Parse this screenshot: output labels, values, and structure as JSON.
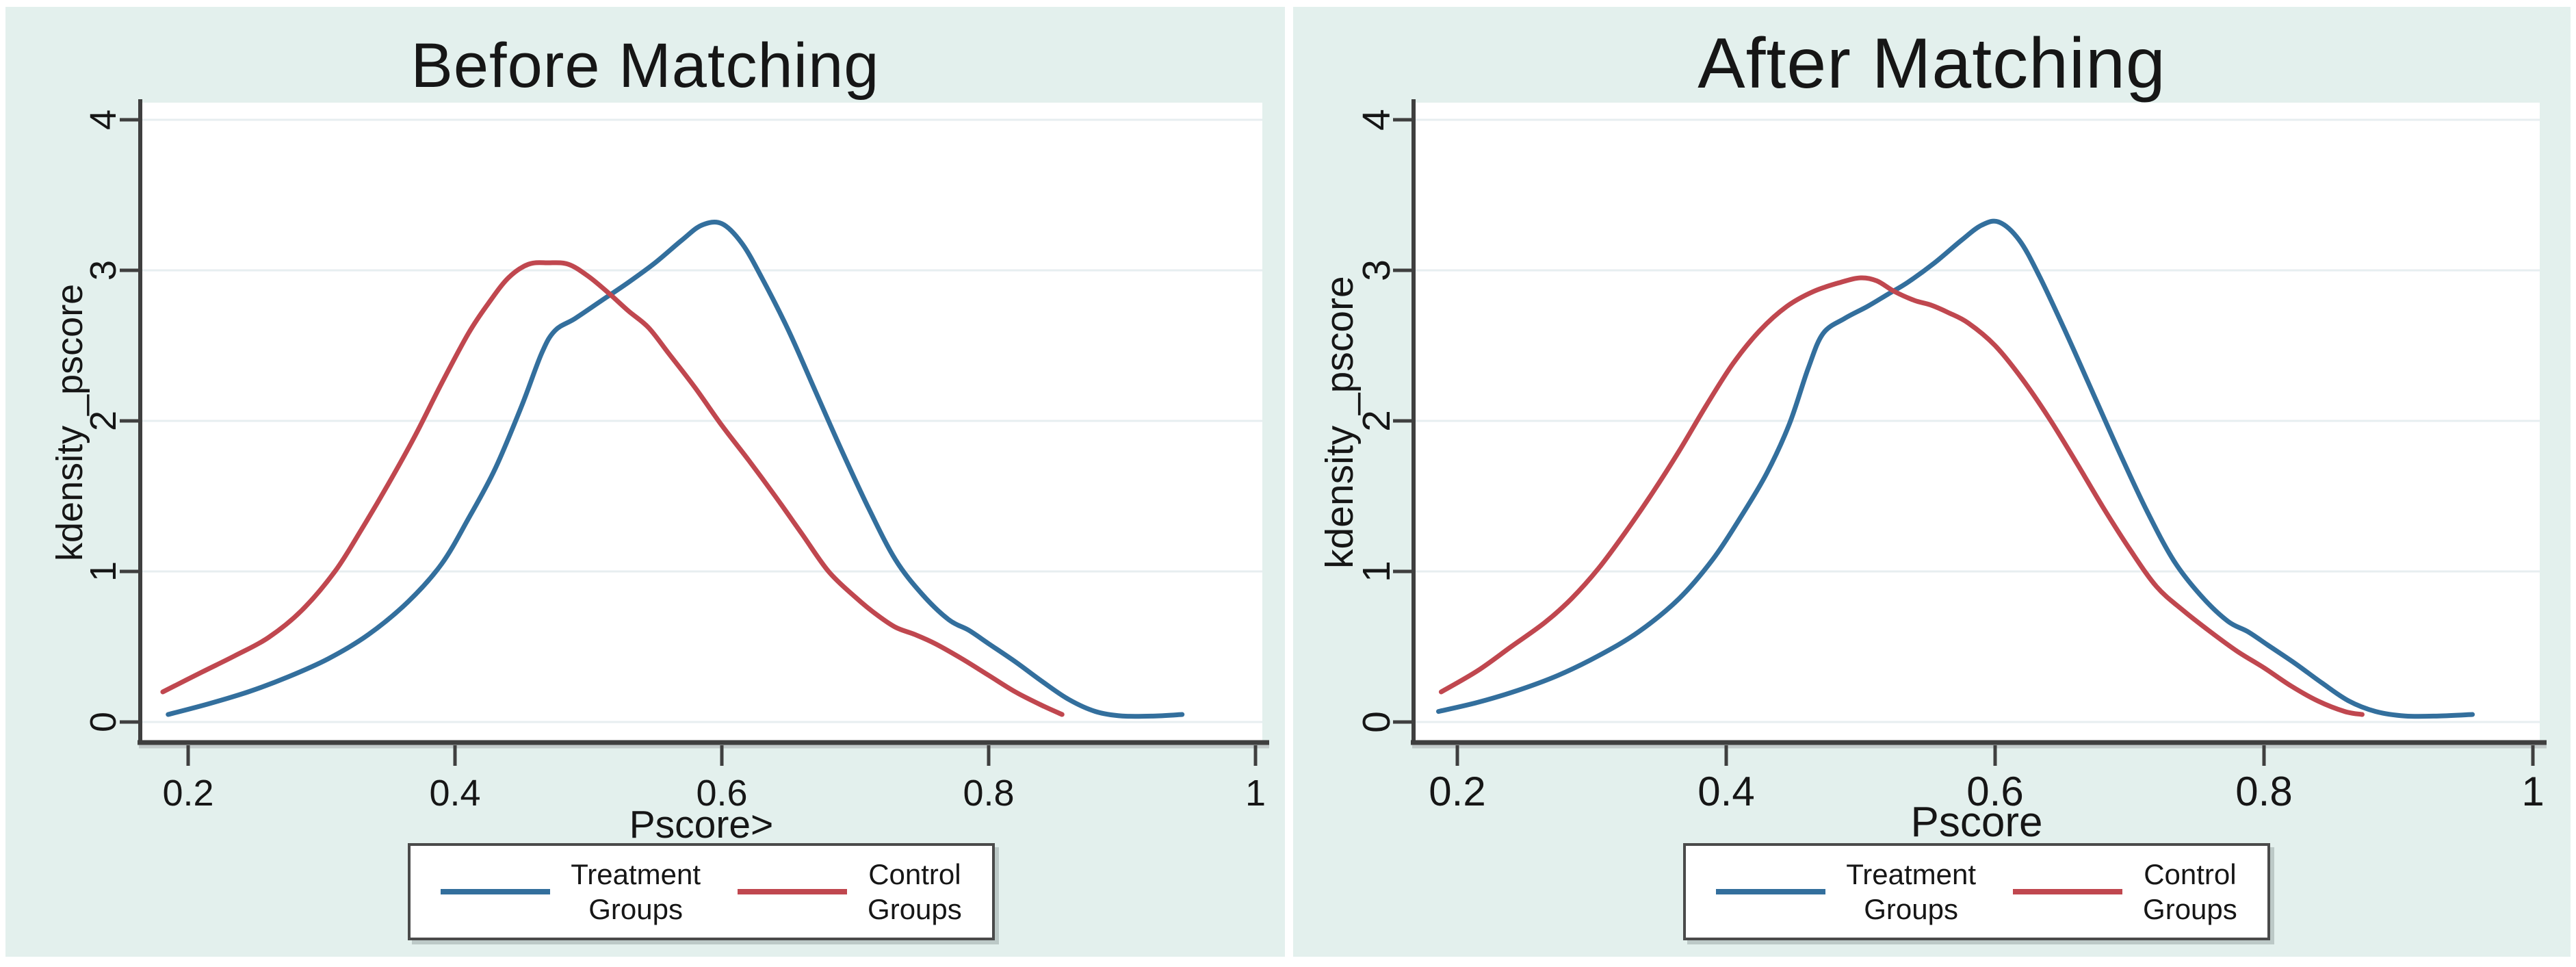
{
  "colors": {
    "treatment": "#336f9d",
    "control": "#c0474f",
    "panel_bg": "#e3f0ed",
    "plot_bg": "#ffffff",
    "grid": "#e7eef0",
    "axis": "#3f3f3f",
    "axis_shadow": "#c3cbcb",
    "text": "#161616",
    "legend_border": "#4a4a4a"
  },
  "panels": [
    {
      "title": "Before Matching",
      "xlabel": "Pscore>",
      "ylabel": "kdensity _pscore",
      "legend": {
        "items": [
          {
            "line1": "Treatment",
            "line2": "Groups",
            "series": "treatment"
          },
          {
            "line1": "Control",
            "line2": "Groups",
            "series": "control"
          }
        ]
      }
    },
    {
      "title": "After Matching",
      "xlabel": "Pscore",
      "ylabel": "kdensity _pscore",
      "legend": {
        "items": [
          {
            "line1": "Treatment",
            "line2": "Groups",
            "series": "treatment"
          },
          {
            "line1": "Control",
            "line2": "Groups",
            "series": "control"
          }
        ]
      }
    }
  ],
  "chart_data": [
    {
      "type": "line",
      "title": "Before Matching",
      "xlabel": "Pscore>",
      "ylabel": "kdensity _pscore",
      "xlim": [
        0.155,
        1.02
      ],
      "ylim": [
        0,
        4.3
      ],
      "xticks": {
        "values": [
          0.2,
          0.4,
          0.6,
          0.8,
          1
        ],
        "labels": [
          "0.2",
          "0.4",
          "0.6",
          "0.8",
          "1"
        ]
      },
      "yticks": {
        "values": [
          0,
          1,
          2,
          3,
          4
        ],
        "labels": [
          "0",
          "1",
          "2",
          "3",
          "4"
        ]
      },
      "grid": "horizontal",
      "legend_position": "bottom",
      "series": [
        {
          "name": "Treatment Groups",
          "color_key": "treatment",
          "points": [
            [
              0.185,
              0.05
            ],
            [
              0.215,
              0.12
            ],
            [
              0.245,
              0.2
            ],
            [
              0.275,
              0.3
            ],
            [
              0.305,
              0.42
            ],
            [
              0.335,
              0.58
            ],
            [
              0.365,
              0.8
            ],
            [
              0.39,
              1.05
            ],
            [
              0.41,
              1.35
            ],
            [
              0.43,
              1.68
            ],
            [
              0.45,
              2.1
            ],
            [
              0.465,
              2.45
            ],
            [
              0.475,
              2.6
            ],
            [
              0.49,
              2.68
            ],
            [
              0.51,
              2.8
            ],
            [
              0.53,
              2.92
            ],
            [
              0.55,
              3.05
            ],
            [
              0.57,
              3.2
            ],
            [
              0.585,
              3.3
            ],
            [
              0.6,
              3.31
            ],
            [
              0.615,
              3.18
            ],
            [
              0.63,
              2.95
            ],
            [
              0.65,
              2.6
            ],
            [
              0.67,
              2.2
            ],
            [
              0.69,
              1.8
            ],
            [
              0.71,
              1.42
            ],
            [
              0.73,
              1.08
            ],
            [
              0.75,
              0.85
            ],
            [
              0.77,
              0.68
            ],
            [
              0.785,
              0.61
            ],
            [
              0.8,
              0.52
            ],
            [
              0.82,
              0.4
            ],
            [
              0.84,
              0.27
            ],
            [
              0.86,
              0.15
            ],
            [
              0.88,
              0.07
            ],
            [
              0.9,
              0.04
            ],
            [
              0.925,
              0.04
            ],
            [
              0.945,
              0.05
            ]
          ]
        },
        {
          "name": "Control Groups",
          "color_key": "control",
          "points": [
            [
              0.181,
              0.2
            ],
            [
              0.21,
              0.33
            ],
            [
              0.235,
              0.44
            ],
            [
              0.26,
              0.56
            ],
            [
              0.285,
              0.74
            ],
            [
              0.31,
              1.0
            ],
            [
              0.33,
              1.28
            ],
            [
              0.35,
              1.58
            ],
            [
              0.37,
              1.9
            ],
            [
              0.39,
              2.25
            ],
            [
              0.41,
              2.58
            ],
            [
              0.425,
              2.78
            ],
            [
              0.44,
              2.95
            ],
            [
              0.455,
              3.04
            ],
            [
              0.47,
              3.05
            ],
            [
              0.485,
              3.04
            ],
            [
              0.5,
              2.96
            ],
            [
              0.515,
              2.85
            ],
            [
              0.53,
              2.73
            ],
            [
              0.545,
              2.62
            ],
            [
              0.56,
              2.45
            ],
            [
              0.58,
              2.22
            ],
            [
              0.6,
              1.97
            ],
            [
              0.62,
              1.74
            ],
            [
              0.64,
              1.5
            ],
            [
              0.66,
              1.25
            ],
            [
              0.68,
              1.0
            ],
            [
              0.7,
              0.83
            ],
            [
              0.715,
              0.72
            ],
            [
              0.73,
              0.63
            ],
            [
              0.745,
              0.58
            ],
            [
              0.76,
              0.52
            ],
            [
              0.78,
              0.42
            ],
            [
              0.8,
              0.31
            ],
            [
              0.82,
              0.2
            ],
            [
              0.84,
              0.11
            ],
            [
              0.855,
              0.05
            ]
          ]
        }
      ]
    },
    {
      "type": "line",
      "title": "After Matching",
      "xlabel": "Pscore",
      "ylabel": "kdensity _pscore",
      "xlim": [
        0.155,
        1.02
      ],
      "ylim": [
        0,
        4.3
      ],
      "xticks": {
        "values": [
          0.2,
          0.4,
          0.6,
          0.8,
          1
        ],
        "labels": [
          "0.2",
          "0.4",
          "0.6",
          "0.8",
          "1"
        ]
      },
      "yticks": {
        "values": [
          0,
          1,
          2,
          3,
          4
        ],
        "labels": [
          "0",
          "1",
          "2",
          "3",
          "4"
        ]
      },
      "grid": "horizontal",
      "legend_position": "bottom",
      "series": [
        {
          "name": "Treatment Groups",
          "color_key": "treatment",
          "points": [
            [
              0.186,
              0.07
            ],
            [
              0.215,
              0.13
            ],
            [
              0.245,
              0.21
            ],
            [
              0.275,
              0.31
            ],
            [
              0.305,
              0.44
            ],
            [
              0.335,
              0.6
            ],
            [
              0.365,
              0.82
            ],
            [
              0.39,
              1.08
            ],
            [
              0.41,
              1.35
            ],
            [
              0.43,
              1.65
            ],
            [
              0.447,
              1.98
            ],
            [
              0.461,
              2.35
            ],
            [
              0.472,
              2.58
            ],
            [
              0.488,
              2.68
            ],
            [
              0.505,
              2.76
            ],
            [
              0.52,
              2.84
            ],
            [
              0.535,
              2.92
            ],
            [
              0.555,
              3.05
            ],
            [
              0.575,
              3.2
            ],
            [
              0.59,
              3.3
            ],
            [
              0.603,
              3.32
            ],
            [
              0.618,
              3.2
            ],
            [
              0.633,
              2.96
            ],
            [
              0.653,
              2.58
            ],
            [
              0.673,
              2.18
            ],
            [
              0.693,
              1.78
            ],
            [
              0.713,
              1.4
            ],
            [
              0.733,
              1.07
            ],
            [
              0.753,
              0.84
            ],
            [
              0.773,
              0.67
            ],
            [
              0.788,
              0.6
            ],
            [
              0.803,
              0.51
            ],
            [
              0.823,
              0.39
            ],
            [
              0.843,
              0.26
            ],
            [
              0.863,
              0.14
            ],
            [
              0.883,
              0.07
            ],
            [
              0.905,
              0.04
            ],
            [
              0.93,
              0.04
            ],
            [
              0.955,
              0.05
            ]
          ]
        },
        {
          "name": "Control Groups",
          "color_key": "control",
          "points": [
            [
              0.188,
              0.2
            ],
            [
              0.215,
              0.34
            ],
            [
              0.24,
              0.5
            ],
            [
              0.265,
              0.66
            ],
            [
              0.285,
              0.82
            ],
            [
              0.305,
              1.02
            ],
            [
              0.325,
              1.26
            ],
            [
              0.345,
              1.52
            ],
            [
              0.365,
              1.8
            ],
            [
              0.385,
              2.1
            ],
            [
              0.405,
              2.38
            ],
            [
              0.425,
              2.6
            ],
            [
              0.445,
              2.76
            ],
            [
              0.465,
              2.86
            ],
            [
              0.485,
              2.92
            ],
            [
              0.5,
              2.95
            ],
            [
              0.512,
              2.93
            ],
            [
              0.525,
              2.86
            ],
            [
              0.54,
              2.8
            ],
            [
              0.552,
              2.77
            ],
            [
              0.565,
              2.72
            ],
            [
              0.58,
              2.65
            ],
            [
              0.6,
              2.5
            ],
            [
              0.62,
              2.28
            ],
            [
              0.64,
              2.02
            ],
            [
              0.66,
              1.73
            ],
            [
              0.68,
              1.43
            ],
            [
              0.7,
              1.15
            ],
            [
              0.72,
              0.9
            ],
            [
              0.74,
              0.74
            ],
            [
              0.76,
              0.6
            ],
            [
              0.78,
              0.47
            ],
            [
              0.8,
              0.36
            ],
            [
              0.82,
              0.24
            ],
            [
              0.84,
              0.14
            ],
            [
              0.86,
              0.07
            ],
            [
              0.873,
              0.05
            ]
          ]
        }
      ]
    }
  ]
}
